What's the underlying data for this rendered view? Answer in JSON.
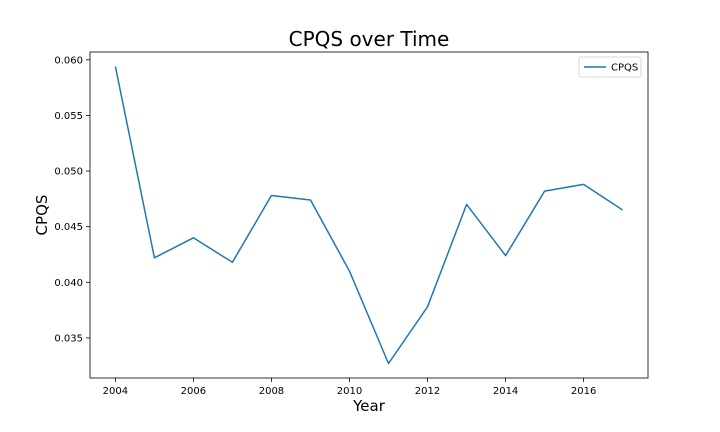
{
  "chart_data": {
    "type": "line",
    "title": "CPQS over Time",
    "xlabel": "Year",
    "ylabel": "CPQS",
    "x": [
      2004,
      2005,
      2006,
      2007,
      2008,
      2009,
      2010,
      2011,
      2012,
      2013,
      2014,
      2015,
      2016,
      2017
    ],
    "series": [
      {
        "name": "CPQS",
        "color": "#1f77b4",
        "values": [
          0.0594,
          0.0422,
          0.044,
          0.0418,
          0.0478,
          0.0474,
          0.041,
          0.0327,
          0.0378,
          0.047,
          0.0424,
          0.0482,
          0.0488,
          0.0465
        ]
      }
    ],
    "xlim": [
      2003.35,
      2017.65
    ],
    "ylim": [
      0.0314,
      0.0607
    ],
    "xticks": [
      2004,
      2006,
      2008,
      2010,
      2012,
      2014,
      2016
    ],
    "yticks": [
      0.035,
      0.04,
      0.045,
      0.05,
      0.055,
      0.06
    ],
    "yticks_labels": [
      "0.035",
      "0.040",
      "0.045",
      "0.050",
      "0.055",
      "0.060"
    ],
    "grid": false,
    "legend_position": "upper right"
  }
}
